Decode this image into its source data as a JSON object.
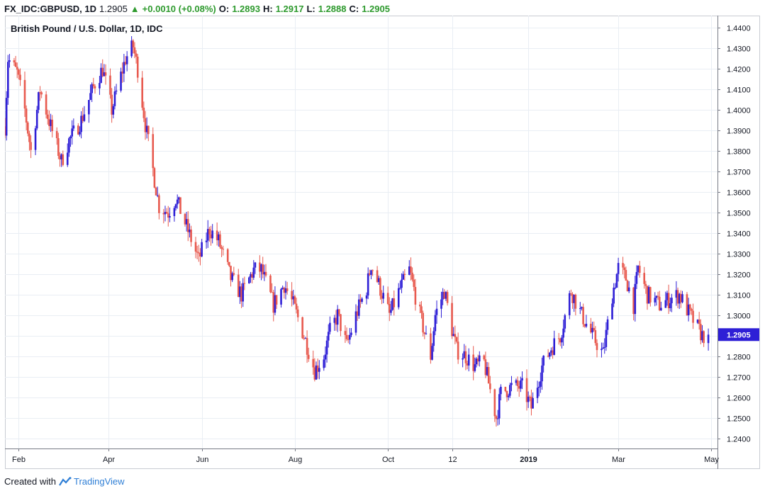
{
  "header": {
    "symbol": "FX_IDC:GBPUSD, 1D",
    "last": "1.2905",
    "change": "+0.0010 (+0.08%)",
    "open_label": "O:",
    "open": "1.2893",
    "high_label": "H:",
    "high": "1.2917",
    "low_label": "L:",
    "low": "1.2888",
    "close_label": "C:",
    "close": "1.2905"
  },
  "footer": {
    "created_with": "Created with",
    "brand": "TradingView",
    "logo_icon": "tradingview-logo-icon"
  },
  "colors": {
    "up": "#2e1fd6",
    "down": "#e85a4f",
    "grid": "#e9eef4",
    "axis": "#787b86",
    "last_badge": "#2e1fd6"
  },
  "chart_data": {
    "type": "candlestick",
    "title": "British Pound / U.S. Dollar, 1D, IDC",
    "ylim": [
      1.235,
      1.446
    ],
    "y_ticks": [
      "1.2400",
      "1.2500",
      "1.2600",
      "1.2700",
      "1.2800",
      "1.2900",
      "1.3000",
      "1.3100",
      "1.3200",
      "1.3300",
      "1.3400",
      "1.3500",
      "1.3600",
      "1.3700",
      "1.3800",
      "1.3900",
      "1.4000",
      "1.4100",
      "1.4200",
      "1.4300",
      "1.4400"
    ],
    "x_ticks": [
      {
        "label": "Feb",
        "day": "2018-02-01"
      },
      {
        "label": "Apr",
        "day": "2018-04-01"
      },
      {
        "label": "Jun",
        "day": "2018-06-01"
      },
      {
        "label": "Aug",
        "day": "2018-08-01"
      },
      {
        "label": "Oct",
        "day": "2018-10-01"
      },
      {
        "label": "12",
        "day": "2018-11-12"
      },
      {
        "label": "2019",
        "day": "2019-01-01"
      },
      {
        "label": "Mar",
        "day": "2019-03-01"
      },
      {
        "label": "May",
        "day": "2019-05-01"
      }
    ],
    "x_range": [
      "2018-01-23",
      "2019-05-05"
    ],
    "last_price": "1.2905",
    "price_path": [
      [
        "2018-01-23",
        1.392
      ],
      [
        "2018-01-25",
        1.425
      ],
      [
        "2018-01-31",
        1.418
      ],
      [
        "2018-02-05",
        1.4
      ],
      [
        "2018-02-09",
        1.38
      ],
      [
        "2018-02-15",
        1.41
      ],
      [
        "2018-02-22",
        1.392
      ],
      [
        "2018-03-01",
        1.375
      ],
      [
        "2018-03-06",
        1.385
      ],
      [
        "2018-03-14",
        1.395
      ],
      [
        "2018-03-23",
        1.413
      ],
      [
        "2018-03-28",
        1.42
      ],
      [
        "2018-04-03",
        1.4
      ],
      [
        "2018-04-12",
        1.425
      ],
      [
        "2018-04-17",
        1.431
      ],
      [
        "2018-04-20",
        1.42
      ],
      [
        "2018-04-25",
        1.393
      ],
      [
        "2018-05-04",
        1.353
      ],
      [
        "2018-05-10",
        1.35
      ],
      [
        "2018-05-15",
        1.357
      ],
      [
        "2018-05-21",
        1.345
      ],
      [
        "2018-05-30",
        1.327
      ],
      [
        "2018-06-06",
        1.342
      ],
      [
        "2018-06-12",
        1.336
      ],
      [
        "2018-06-20",
        1.318
      ],
      [
        "2018-06-27",
        1.31
      ],
      [
        "2018-07-05",
        1.322
      ],
      [
        "2018-07-10",
        1.322
      ],
      [
        "2018-07-18",
        1.305
      ],
      [
        "2018-07-25",
        1.315
      ],
      [
        "2018-07-31",
        1.305
      ],
      [
        "2018-08-07",
        1.29
      ],
      [
        "2018-08-14",
        1.273
      ],
      [
        "2018-08-20",
        1.28
      ],
      [
        "2018-08-24",
        1.292
      ],
      [
        "2018-08-29",
        1.3
      ],
      [
        "2018-09-04",
        1.285
      ],
      [
        "2018-09-10",
        1.3
      ],
      [
        "2018-09-17",
        1.313
      ],
      [
        "2018-09-20",
        1.325
      ],
      [
        "2018-09-25",
        1.315
      ],
      [
        "2018-10-02",
        1.3
      ],
      [
        "2018-10-09",
        1.313
      ],
      [
        "2018-10-15",
        1.322
      ],
      [
        "2018-10-22",
        1.3
      ],
      [
        "2018-10-29",
        1.28
      ],
      [
        "2018-11-01",
        1.3
      ],
      [
        "2018-11-07",
        1.312
      ],
      [
        "2018-11-12",
        1.293
      ],
      [
        "2018-11-15",
        1.283
      ],
      [
        "2018-11-21",
        1.28
      ],
      [
        "2018-11-27",
        1.275
      ],
      [
        "2018-12-03",
        1.277
      ],
      [
        "2018-12-11",
        1.25
      ],
      [
        "2018-12-14",
        1.262
      ],
      [
        "2018-12-21",
        1.265
      ],
      [
        "2018-12-28",
        1.265
      ],
      [
        "2019-01-03",
        1.255
      ],
      [
        "2019-01-10",
        1.275
      ],
      [
        "2019-01-16",
        1.284
      ],
      [
        "2019-01-22",
        1.29
      ],
      [
        "2019-01-29",
        1.312
      ],
      [
        "2019-02-05",
        1.3
      ],
      [
        "2019-02-12",
        1.29
      ],
      [
        "2019-02-19",
        1.281
      ],
      [
        "2019-02-25",
        1.31
      ],
      [
        "2019-03-01",
        1.323
      ],
      [
        "2019-03-06",
        1.318
      ],
      [
        "2019-03-11",
        1.305
      ],
      [
        "2019-03-14",
        1.323
      ],
      [
        "2019-03-20",
        1.31
      ],
      [
        "2019-03-28",
        1.305
      ],
      [
        "2019-04-04",
        1.308
      ],
      [
        "2019-04-10",
        1.31
      ],
      [
        "2019-04-17",
        1.3
      ],
      [
        "2019-04-25",
        1.29
      ],
      [
        "2019-04-29",
        1.2905
      ]
    ]
  }
}
